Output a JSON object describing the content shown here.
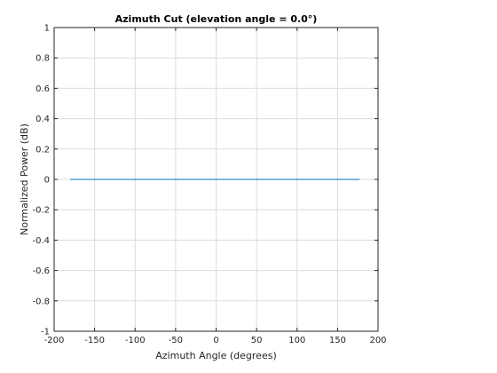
{
  "chart_data": {
    "type": "line",
    "title": "Azimuth Cut (elevation angle = 0.0°)",
    "xlabel": "Azimuth Angle (degrees)",
    "ylabel": "Normalized Power (dB)",
    "xlim": [
      -200,
      200
    ],
    "ylim": [
      -1,
      1
    ],
    "xticks": [
      -200,
      -150,
      -100,
      -50,
      0,
      50,
      100,
      150,
      200
    ],
    "xtick_labels": [
      "-200",
      "-150",
      "-100",
      "-50",
      "0",
      "50",
      "100",
      "150",
      "200"
    ],
    "yticks": [
      -1,
      -0.8,
      -0.6,
      -0.4,
      -0.2,
      0,
      0.2,
      0.4,
      0.6,
      0.8,
      1
    ],
    "ytick_labels": [
      "-1",
      "-0.8",
      "-0.6",
      "-0.4",
      "-0.2",
      "0",
      "0.2",
      "0.4",
      "0.6",
      "0.8",
      "1"
    ],
    "grid": true,
    "series": [
      {
        "color": "#0072bd",
        "x": [
          -180,
          177
        ],
        "y": [
          0,
          0
        ]
      }
    ]
  }
}
